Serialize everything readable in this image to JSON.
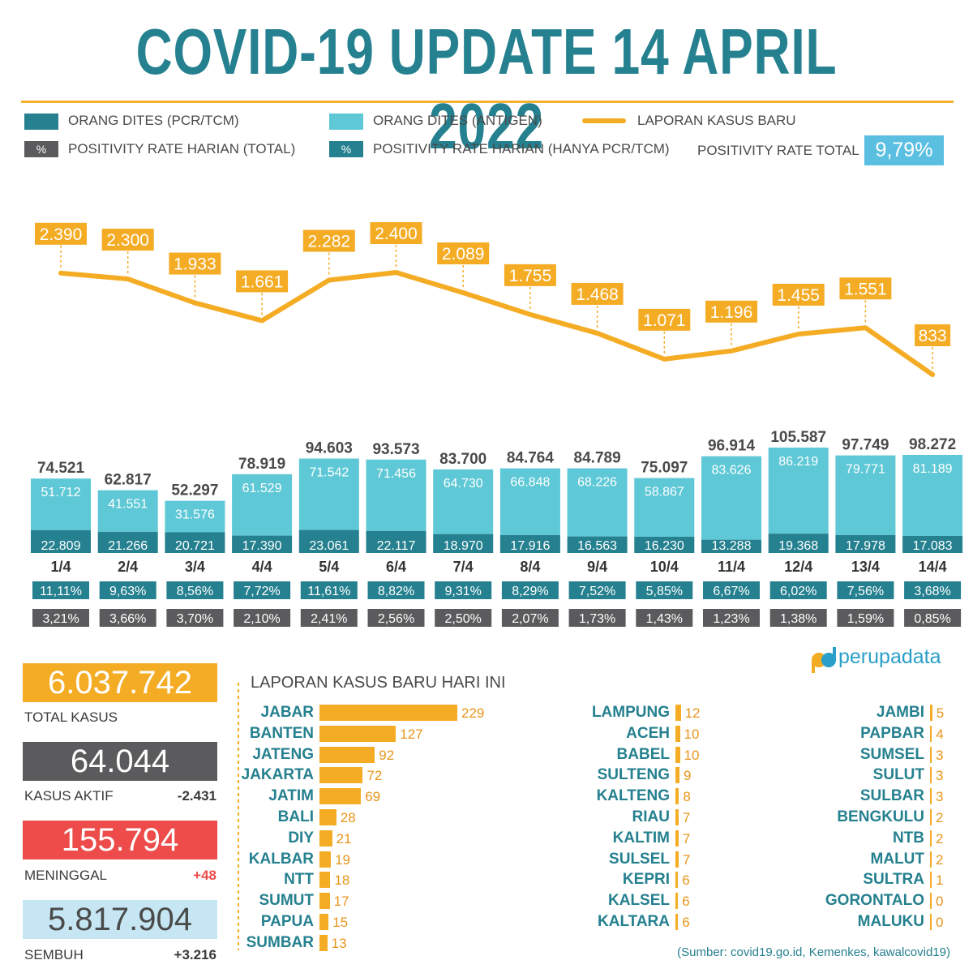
{
  "title": "COVID-19 UPDATE 14 APRIL 2022",
  "legend": {
    "pcr": "ORANG DITES (PCR/TCM)",
    "antigen": "ORANG DITES (ANTIGEN)",
    "cases": "LAPORAN KASUS BARU",
    "pct_symbol": "%",
    "rate_total": "POSITIVITY RATE HARIAN (TOTAL)",
    "rate_pcr": "POSITIVITY RATE HARIAN (HANYA PCR/TCM)",
    "rate_total_overall_label": "POSITIVITY RATE TOTAL",
    "rate_total_overall_value": "9,79%"
  },
  "colors": {
    "teal_dark": "#25808f",
    "teal_light": "#5ec8d6",
    "orange": "#f5ac25",
    "gray": "#5b5b5d",
    "red": "#ed4c4a",
    "light_blue": "#c5e6f2",
    "blue_box": "#5bbfe1"
  },
  "chart_data": {
    "type": "bar",
    "categories": [
      "1/4",
      "2/4",
      "3/4",
      "4/4",
      "5/4",
      "6/4",
      "7/4",
      "8/4",
      "9/4",
      "10/4",
      "11/4",
      "12/4",
      "13/4",
      "14/4"
    ],
    "series": [
      {
        "name": "ORANG DITES (PCR/TCM)",
        "values": [
          22809,
          21266,
          20721,
          17390,
          23061,
          22117,
          18970,
          17916,
          16563,
          16230,
          13288,
          19368,
          17978,
          17083
        ],
        "labels": [
          "22.809",
          "21.266",
          "20.721",
          "17.390",
          "23.061",
          "22.117",
          "18.970",
          "17.916",
          "16.563",
          "16.230",
          "13.288",
          "19.368",
          "17.978",
          "17.083"
        ]
      },
      {
        "name": "ORANG DITES (ANTIGEN)",
        "values": [
          51712,
          41551,
          31576,
          61529,
          71542,
          71456,
          64730,
          66848,
          68226,
          58867,
          83626,
          86219,
          79771,
          81189
        ],
        "labels": [
          "51.712",
          "41.551",
          "31.576",
          "61.529",
          "71.542",
          "71.456",
          "64.730",
          "66.848",
          "68.226",
          "58.867",
          "83.626",
          "86.219",
          "79.771",
          "81.189"
        ]
      },
      {
        "name": "LAPORAN KASUS BARU",
        "values": [
          2390,
          2300,
          1933,
          1661,
          2282,
          2400,
          2089,
          1755,
          1468,
          1071,
          1196,
          1455,
          1551,
          833
        ],
        "labels": [
          "2.390",
          "2.300",
          "1.933",
          "1.661",
          "2.282",
          "2.400",
          "2.089",
          "1.755",
          "1.468",
          "1.071",
          "1.196",
          "1.455",
          "1.551",
          "833"
        ]
      }
    ],
    "totals": [
      74521,
      62817,
      52297,
      78919,
      94603,
      93573,
      83700,
      84764,
      84789,
      75097,
      96914,
      105587,
      97749,
      98272
    ],
    "total_labels": [
      "74.521",
      "62.817",
      "52.297",
      "78.919",
      "94.603",
      "93.573",
      "83.700",
      "84.764",
      "84.789",
      "75.097",
      "96.914",
      "105.587",
      "97.749",
      "98.272"
    ],
    "rate_pcr": [
      "11,11%",
      "9,63%",
      "8,56%",
      "7,72%",
      "11,61%",
      "8,82%",
      "9,31%",
      "8,29%",
      "7,52%",
      "5,85%",
      "6,67%",
      "6,02%",
      "7,56%",
      "3,68%"
    ],
    "rate_total": [
      "3,21%",
      "3,66%",
      "3,70%",
      "2,10%",
      "2,41%",
      "2,56%",
      "2,50%",
      "2,07%",
      "1,73%",
      "1,43%",
      "1,23%",
      "1,38%",
      "1,59%",
      "0,85%"
    ]
  },
  "stats": {
    "total_cases": {
      "value": "6.037.742",
      "label": "TOTAL KASUS"
    },
    "active": {
      "value": "64.044",
      "label": "KASUS AKTIF",
      "change": "-2.431"
    },
    "deaths": {
      "value": "155.794",
      "label": "MENINGGAL",
      "change": "+48"
    },
    "recovered": {
      "value": "5.817.904",
      "label": "SEMBUH",
      "change": "+3.216"
    }
  },
  "provinces": {
    "title": "LAPORAN KASUS BARU HARI INI",
    "col1": [
      {
        "name": "JABAR",
        "value": 229
      },
      {
        "name": "BANTEN",
        "value": 127
      },
      {
        "name": "JATENG",
        "value": 92
      },
      {
        "name": "JAKARTA",
        "value": 72
      },
      {
        "name": "JATIM",
        "value": 69
      },
      {
        "name": "BALI",
        "value": 28
      },
      {
        "name": "DIY",
        "value": 21
      },
      {
        "name": "KALBAR",
        "value": 19
      },
      {
        "name": "NTT",
        "value": 18
      },
      {
        "name": "SUMUT",
        "value": 17
      },
      {
        "name": "PAPUA",
        "value": 15
      },
      {
        "name": "SUMBAR",
        "value": 13
      }
    ],
    "col2": [
      {
        "name": "LAMPUNG",
        "value": 12
      },
      {
        "name": "ACEH",
        "value": 10
      },
      {
        "name": "BABEL",
        "value": 10
      },
      {
        "name": "SULTENG",
        "value": 9
      },
      {
        "name": "KALTENG",
        "value": 8
      },
      {
        "name": "RIAU",
        "value": 7
      },
      {
        "name": "KALTIM",
        "value": 7
      },
      {
        "name": "SULSEL",
        "value": 7
      },
      {
        "name": "KEPRI",
        "value": 6
      },
      {
        "name": "KALSEL",
        "value": 6
      },
      {
        "name": "KALTARA",
        "value": 6
      }
    ],
    "col3": [
      {
        "name": "JAMBI",
        "value": 5
      },
      {
        "name": "PAPBAR",
        "value": 4
      },
      {
        "name": "SUMSEL",
        "value": 3
      },
      {
        "name": "SULUT",
        "value": 3
      },
      {
        "name": "SULBAR",
        "value": 3
      },
      {
        "name": "BENGKULU",
        "value": 2
      },
      {
        "name": "NTB",
        "value": 2
      },
      {
        "name": "MALUT",
        "value": 2
      },
      {
        "name": "SULTRA",
        "value": 1
      },
      {
        "name": "GORONTALO",
        "value": 0
      },
      {
        "name": "MALUKU",
        "value": 0
      }
    ]
  },
  "brand": "perupadata",
  "source": "(Sumber: covid19.go.id, Kemenkes, kawalcovid19)"
}
